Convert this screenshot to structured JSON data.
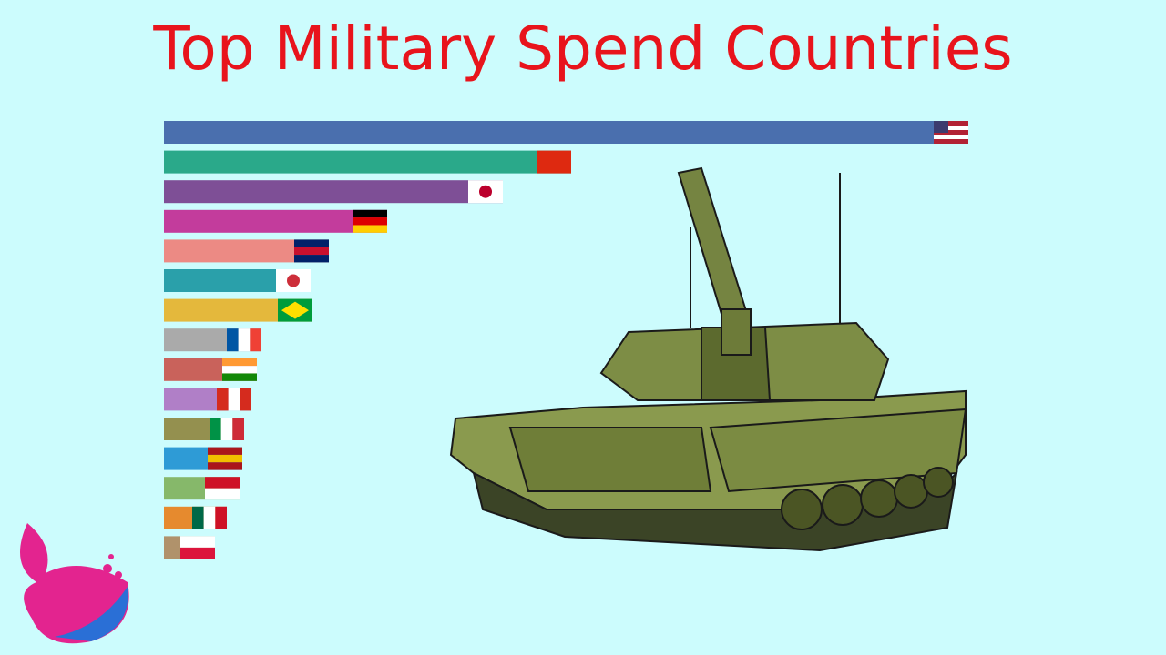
{
  "chart_data": {
    "type": "bar",
    "orientation": "horizontal",
    "title": "Top Military Spend Countries",
    "values": [
      883,
      447,
      372,
      245,
      181,
      161,
      163,
      107,
      102,
      96,
      88,
      86,
      83,
      69,
      56
    ],
    "colors": [
      "#4a6fae",
      "#2aa98a",
      "#7e4f96",
      "#c33c9c",
      "#ec8a84",
      "#2aa0aa",
      "#e4b83c",
      "#aaaaaa",
      "#c9625b",
      "#b07fc7",
      "#94904f",
      "#2e9bd6",
      "#86b86a",
      "#e68a2e",
      "#b0926b"
    ]
  }
}
